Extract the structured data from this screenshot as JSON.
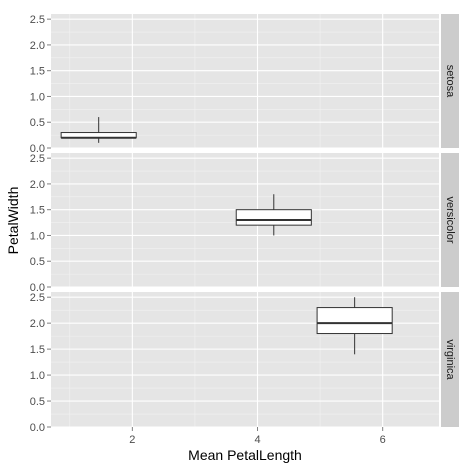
{
  "chart_data": {
    "type": "boxplot",
    "xlabel": "Mean PetalLength",
    "ylabel": "PetalWidth",
    "xlim": [
      0.7,
      6.9
    ],
    "x_ticks": [
      2,
      4,
      6
    ],
    "x_tick_labels": [
      "2",
      "4",
      "6"
    ],
    "ylim": [
      0,
      2.6
    ],
    "y_ticks": [
      0,
      0.5,
      1,
      1.5,
      2,
      2.5
    ],
    "y_tick_labels": [
      "0.0",
      "0.5",
      "1.0",
      "1.5",
      "2.0",
      "2.5"
    ],
    "grid": true,
    "facet_layout": "rows",
    "facets": [
      {
        "label": "setosa",
        "x_center": 1.462,
        "x_width": 1.2,
        "whisker_low": 0.1,
        "q1": 0.2,
        "median": 0.2,
        "q3": 0.3,
        "whisker_high": 0.6
      },
      {
        "label": "versicolor",
        "x_center": 4.26,
        "x_width": 1.2,
        "whisker_low": 1.0,
        "q1": 1.2,
        "median": 1.3,
        "q3": 1.5,
        "whisker_high": 1.8
      },
      {
        "label": "virginica",
        "x_center": 5.552,
        "x_width": 1.2,
        "whisker_low": 1.4,
        "q1": 1.8,
        "median": 2.0,
        "q3": 2.3,
        "whisker_high": 2.5
      }
    ],
    "colors": {
      "panel_background": "#e5e5e5",
      "grid_major": "#ffffff",
      "grid_minor": "#f2f2f2",
      "strip_background": "#cccccc",
      "box_fill": "#ffffff",
      "box_line": "#333333"
    }
  }
}
